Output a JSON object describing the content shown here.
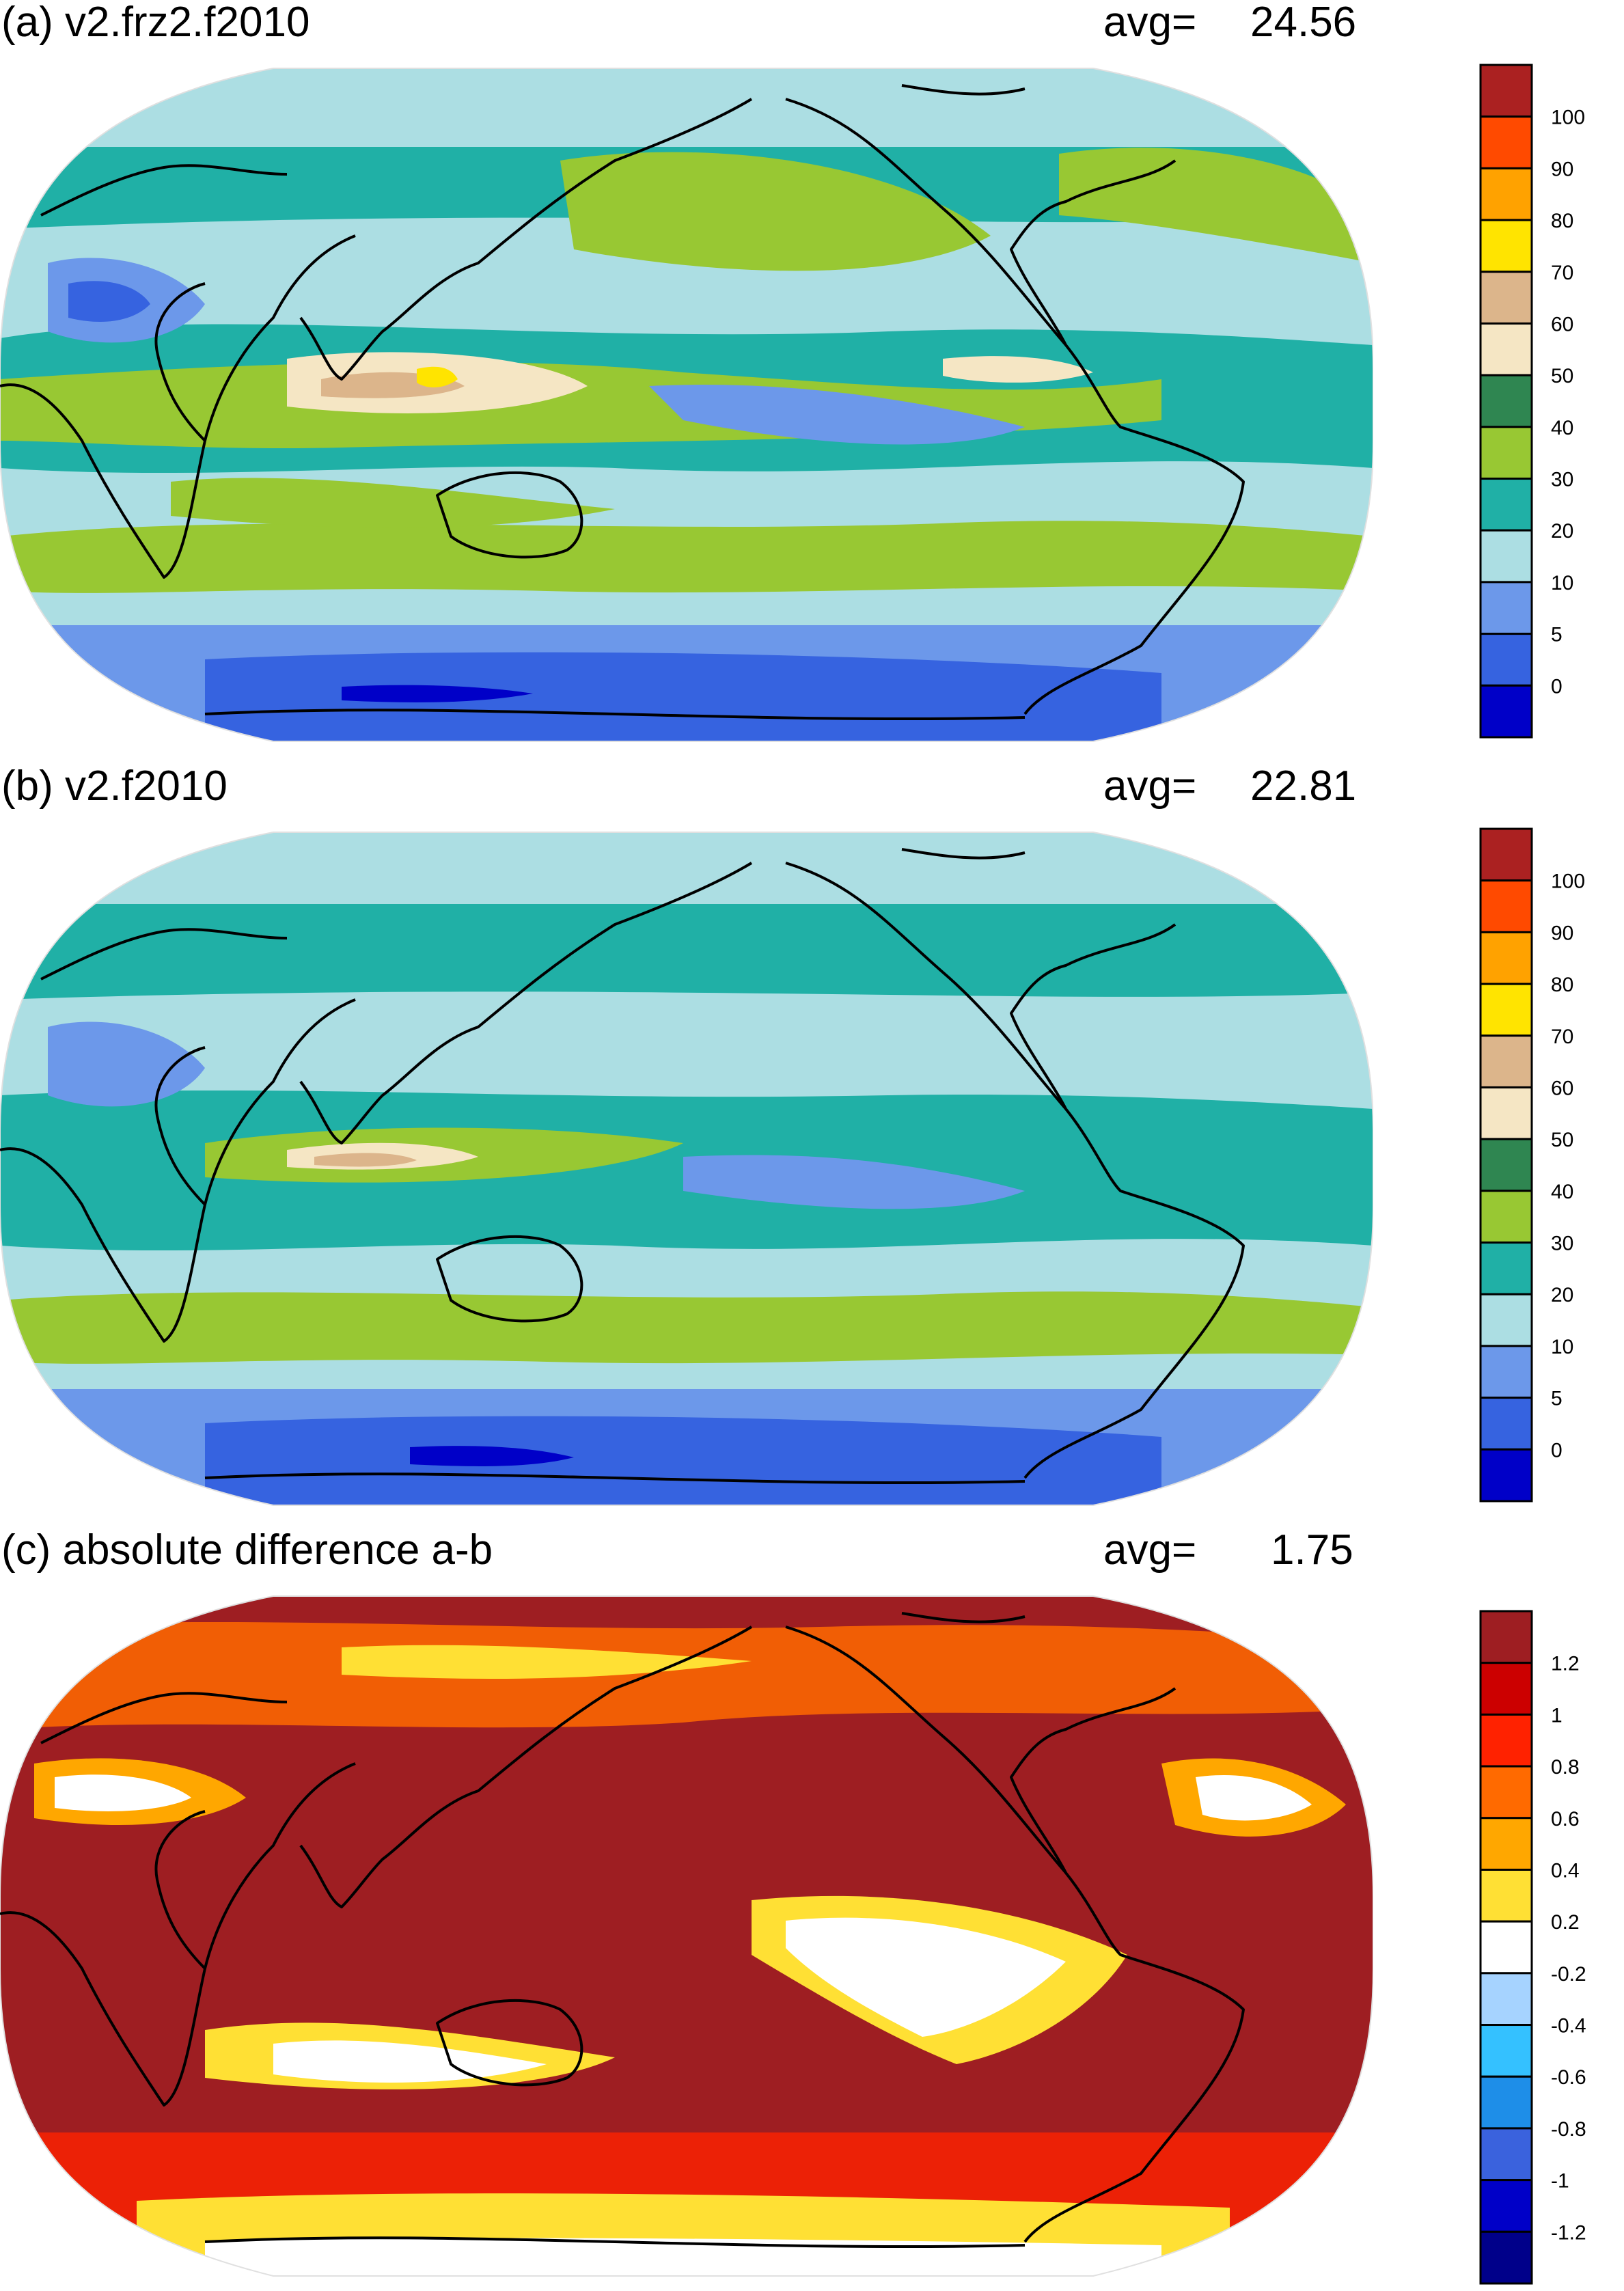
{
  "panels": [
    {
      "title": "(a) v2.frz2.f2010",
      "avg_label": "avg=",
      "avg_value": "24.56",
      "colorbar": {
        "colors": [
          "#ab2121",
          "#ff4a00",
          "#ffa200",
          "#ffe400",
          "#dcb58b",
          "#f5e6c4",
          "#2f8651",
          "#98c833",
          "#20b0a6",
          "#acdee3",
          "#6c98ea",
          "#3663e0",
          "#0000c8"
        ],
        "labels": [
          "100",
          "90",
          "80",
          "70",
          "60",
          "50",
          "40",
          "30",
          "20",
          "10",
          "5",
          "0"
        ]
      }
    },
    {
      "title": "(b) v2.f2010",
      "avg_label": "avg=",
      "avg_value": "22.81",
      "colorbar": {
        "colors": [
          "#ab2121",
          "#ff4a00",
          "#ffa200",
          "#ffe400",
          "#dcb58b",
          "#f5e6c4",
          "#2f8651",
          "#98c833",
          "#20b0a6",
          "#acdee3",
          "#6c98ea",
          "#3663e0",
          "#0000c8"
        ],
        "labels": [
          "100",
          "90",
          "80",
          "70",
          "60",
          "50",
          "40",
          "30",
          "20",
          "10",
          "5",
          "0"
        ]
      }
    },
    {
      "title": "(c) absolute difference a-b",
      "avg_label": "avg=",
      "avg_value": "1.75",
      "colorbar": {
        "colors": [
          "#9e1e22",
          "#cc0000",
          "#ff2200",
          "#ff6a00",
          "#ffa700",
          "#ffe034",
          "#ffffff",
          "#a6d3ff",
          "#34c1ff",
          "#1e8ee8",
          "#3a62dd",
          "#0000c8",
          "#00008a"
        ],
        "labels": [
          "1.2",
          "1",
          "0.8",
          "0.6",
          "0.4",
          "0.2",
          "-0.2",
          "-0.4",
          "-0.6",
          "-0.8",
          "-1",
          "-1.2"
        ]
      }
    }
  ]
}
